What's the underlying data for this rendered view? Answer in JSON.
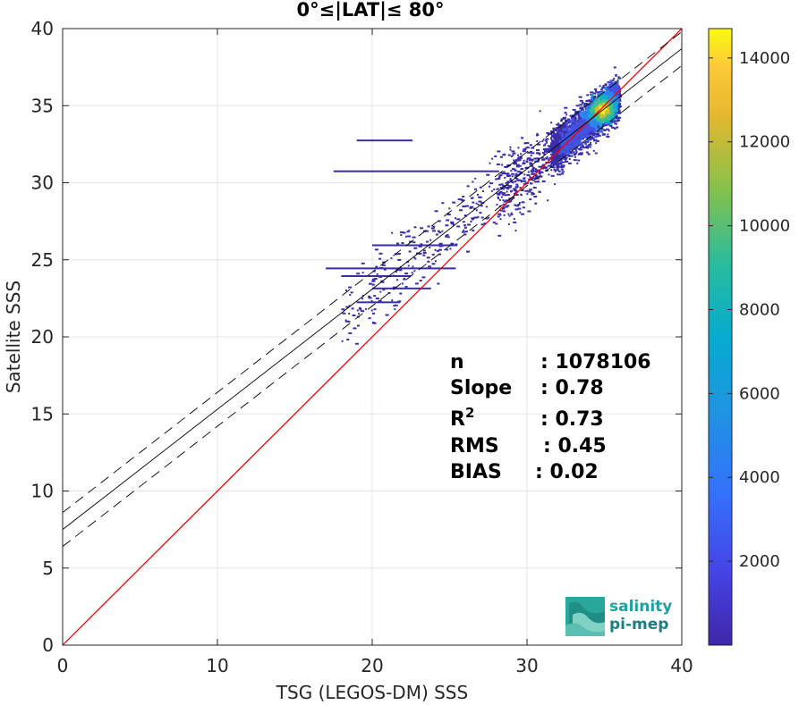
{
  "chart_data": {
    "type": "heatmap",
    "title": "0°≤|LAT|≤ 80°",
    "xlabel": "TSG (LEGOS-DM) SSS",
    "ylabel": "Satellite SSS",
    "xlim": [
      0,
      40
    ],
    "ylim": [
      0,
      40
    ],
    "xticks": [
      0,
      10,
      20,
      30,
      40
    ],
    "yticks": [
      0,
      5,
      10,
      15,
      20,
      25,
      30,
      35,
      40
    ],
    "grid": true,
    "colorbar": {
      "range": [
        0,
        14700
      ],
      "ticks": [
        2000,
        4000,
        6000,
        8000,
        10000,
        12000,
        14000
      ],
      "colormap": "parula"
    },
    "lines": [
      {
        "label": "1:1",
        "color": "#ff0000",
        "style": "solid",
        "slope": 1.0,
        "intercept": 0.0
      },
      {
        "label": "fit",
        "color": "#000000",
        "style": "solid",
        "slope": 0.78,
        "intercept": 7.5
      },
      {
        "label": "fit+",
        "color": "#000000",
        "style": "dashed",
        "slope": 0.78,
        "intercept": 8.6
      },
      {
        "label": "fit-",
        "color": "#000000",
        "style": "dashed",
        "slope": 0.78,
        "intercept": 6.4
      }
    ],
    "density_peak": {
      "x": 34.8,
      "y": 34.8
    },
    "stats": {
      "n": {
        "label": "n",
        "value": ": 1078106"
      },
      "slope": {
        "label": "Slope",
        "value": ": 0.78"
      },
      "r2": {
        "label": "R",
        "sup": "2",
        "value": ": 0.73"
      },
      "rms": {
        "label": "RMS",
        "value": ": 0.45"
      },
      "bias": {
        "label": "BIAS",
        "value": ": 0.02"
      }
    }
  },
  "logo": {
    "line1": "salinity",
    "line2": "pi-mep"
  },
  "colors": {
    "one_to_one": "#ff0000",
    "fit": "#000000",
    "grid": "#e6e6e6",
    "logo": "#21a0a0"
  }
}
